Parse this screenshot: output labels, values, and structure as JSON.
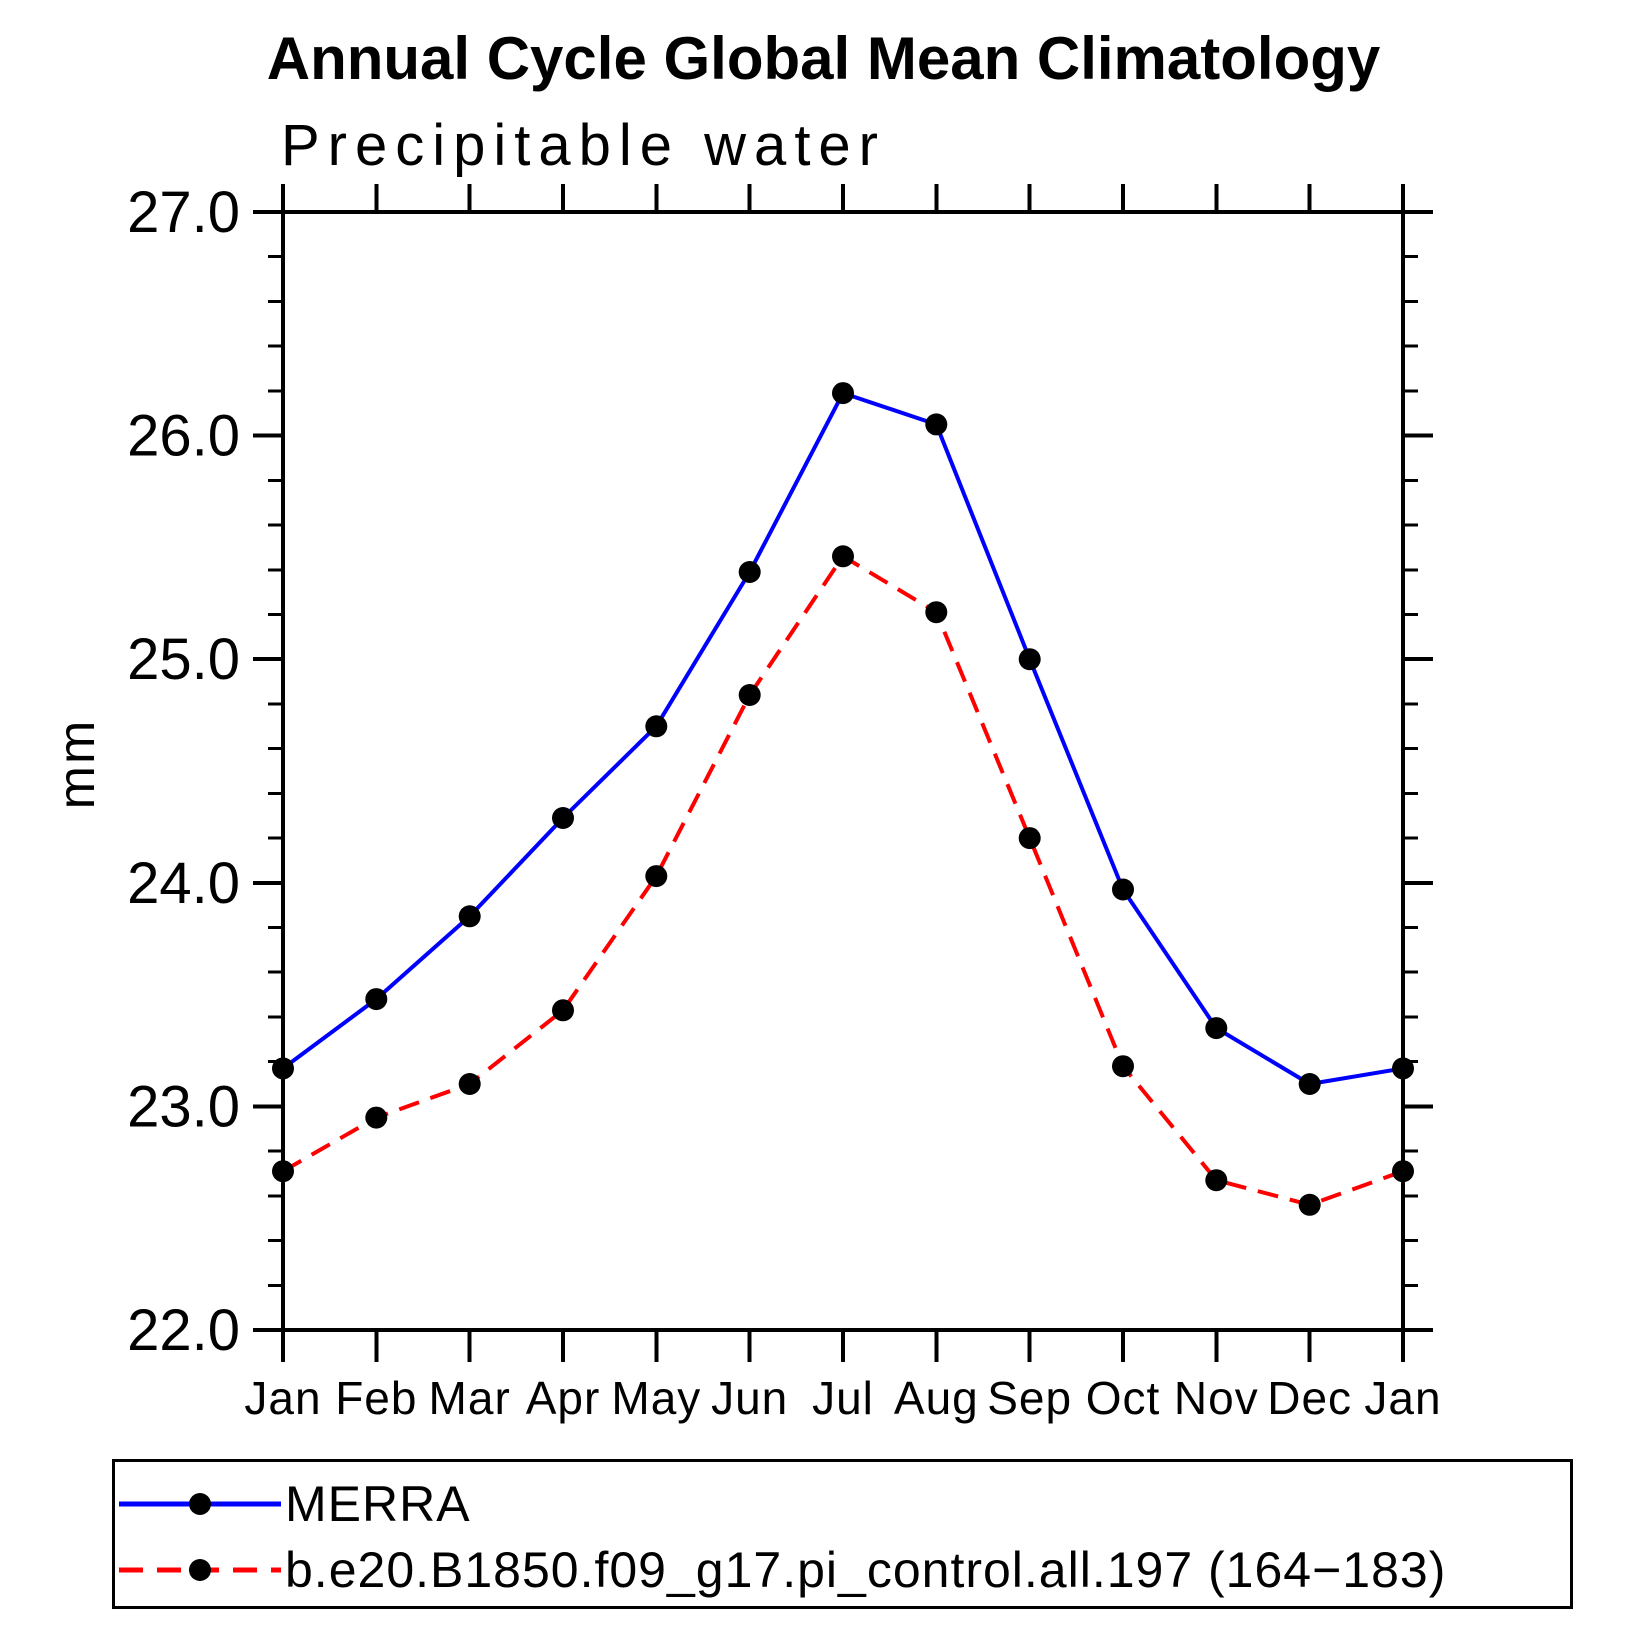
{
  "chart_data": {
    "type": "line",
    "title": "Annual Cycle Global Mean Climatology",
    "subtitle": "Precipitable water",
    "ylabel": "mm",
    "categories": [
      "Jan",
      "Feb",
      "Mar",
      "Apr",
      "May",
      "Jun",
      "Jul",
      "Aug",
      "Sep",
      "Oct",
      "Nov",
      "Dec",
      "Jan"
    ],
    "ylim": [
      22.0,
      27.0
    ],
    "y_major_step": 1.0,
    "y_minor_step": 0.2,
    "y_tick_labels": [
      "22.0",
      "23.0",
      "24.0",
      "25.0",
      "26.0",
      "27.0"
    ],
    "grid": false,
    "legend_position": "bottom",
    "axis_color": "#000000",
    "marker_color": "#000000",
    "series": [
      {
        "name": "MERRA",
        "color": "#0000ff",
        "style": "solid",
        "marker": "circle",
        "values": [
          23.17,
          23.48,
          23.85,
          24.29,
          24.7,
          25.39,
          26.19,
          26.05,
          25.0,
          23.97,
          23.35,
          23.1,
          23.17
        ]
      },
      {
        "name": "b.e20.B1850.f09_g17.pi_control.all.197 (164−183)",
        "color": "#ff0000",
        "style": "dashed",
        "marker": "circle",
        "values": [
          22.71,
          22.95,
          23.1,
          23.43,
          24.03,
          24.84,
          25.46,
          25.21,
          24.2,
          23.18,
          22.67,
          22.56,
          22.71
        ]
      }
    ]
  }
}
